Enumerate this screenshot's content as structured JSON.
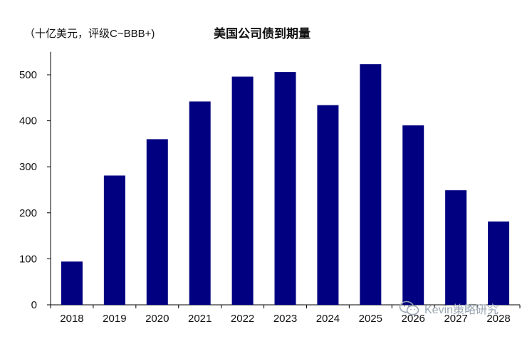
{
  "header": {
    "unit_label": "（十亿美元，评级C~BBB+)",
    "title": "美国公司债到期量"
  },
  "watermark": {
    "text": "Kevin策略研究",
    "icon": "wechat-icon"
  },
  "chart_data": {
    "type": "bar",
    "title": "美国公司债到期量",
    "ylabel": "（十亿美元，评级C~BBB+)",
    "xlabel": "",
    "categories": [
      "2018",
      "2019",
      "2020",
      "2021",
      "2022",
      "2023",
      "2024",
      "2025",
      "2026",
      "2027",
      "2028"
    ],
    "values": [
      94,
      281,
      360,
      442,
      496,
      506,
      434,
      523,
      390,
      249,
      181
    ],
    "ylim": [
      0,
      550
    ],
    "yticks": [
      0,
      100,
      200,
      300,
      400,
      500
    ],
    "bar_color": "#000080",
    "grid": false,
    "legend": "none"
  }
}
